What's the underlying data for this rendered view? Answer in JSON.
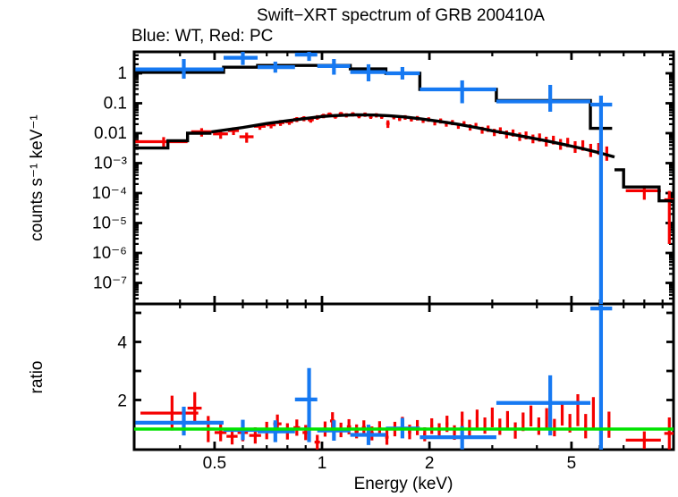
{
  "title": "Swift−XRT spectrum of GRB 200410A",
  "subtitle": "Blue: WT, Red: PC",
  "colors": {
    "wt_blue": "#1679f2",
    "pc_red": "#f50000",
    "model_black": "#000000",
    "ratio_green": "#00e300",
    "frame": "#000000",
    "background": "#ffffff"
  },
  "x_axis": {
    "label": "Energy (keV)",
    "scale": "log",
    "range_kev": [
      0.3,
      9.66
    ],
    "major_ticks": [
      {
        "v": 0.5,
        "label": "0.5"
      },
      {
        "v": 1,
        "label": "1"
      },
      {
        "v": 2,
        "label": "2"
      },
      {
        "v": 5,
        "label": "5"
      }
    ],
    "minor_ticks": [
      0.4,
      0.6,
      0.7,
      0.8,
      0.9,
      3,
      4,
      6,
      7,
      8,
      9
    ]
  },
  "chart_data": [
    {
      "panel": "spectrum",
      "type": "scatter",
      "ylabel": "counts s⁻¹ keV⁻¹",
      "yscale": "log",
      "yrange": [
        2e-08,
        5.2
      ],
      "yticks": [
        {
          "v": 1,
          "label": "1"
        },
        {
          "v": 0.1,
          "label": "0.1"
        },
        {
          "v": 0.01,
          "label": "0.01"
        },
        {
          "v": 0.001,
          "label": "10⁻³"
        },
        {
          "v": 0.0001,
          "label": "10⁻⁴"
        },
        {
          "v": 1e-05,
          "label": "10⁻⁵"
        },
        {
          "v": 1e-06,
          "label": "10⁻⁶"
        },
        {
          "v": 1e-07,
          "label": "10⁻⁷"
        }
      ],
      "wt_points": [
        [
          0.41,
          0.3,
          0.53,
          1.35,
          0.66,
          3.0
        ],
        [
          0.6,
          0.53,
          0.66,
          3.3,
          1.9,
          5.2
        ],
        [
          0.74,
          0.66,
          0.84,
          1.6,
          1.05,
          2.45
        ],
        [
          0.92,
          0.84,
          0.97,
          4.2,
          2.6,
          5.3
        ],
        [
          1.08,
          0.97,
          1.2,
          1.75,
          0.9,
          3.0
        ],
        [
          1.35,
          1.2,
          1.51,
          1.1,
          0.54,
          2.0
        ],
        [
          1.68,
          1.51,
          1.88,
          1.0,
          0.62,
          1.62
        ],
        [
          2.47,
          1.88,
          3.08,
          0.29,
          0.1,
          0.58
        ],
        [
          4.36,
          3.08,
          5.65,
          0.115,
          0.052,
          0.41
        ],
        [
          6.05,
          5.65,
          6.5,
          0.09,
          1e-08,
          0.18
        ]
      ],
      "wt_model_step": {
        "edges": [
          0.3,
          0.53,
          0.66,
          1.2,
          1.51,
          1.88,
          3.08,
          5.65,
          6.5
        ],
        "values": [
          1.08,
          1.6,
          1.83,
          1.4,
          1.0,
          0.29,
          0.123,
          0.0145
        ]
      },
      "pc_model_left_steps": {
        "edges": [
          0.3,
          0.37,
          0.42,
          0.49
        ],
        "values": [
          0.0032,
          0.0056,
          0.01
        ]
      },
      "pc_model_curve": [
        [
          0.49,
          0.011
        ],
        [
          0.6,
          0.0155
        ],
        [
          0.7,
          0.021
        ],
        [
          0.8,
          0.026
        ],
        [
          0.9,
          0.031
        ],
        [
          1.0,
          0.036
        ],
        [
          1.1,
          0.039
        ],
        [
          1.25,
          0.041
        ],
        [
          1.4,
          0.0405
        ],
        [
          1.55,
          0.038
        ],
        [
          1.7,
          0.035
        ],
        [
          1.9,
          0.03
        ],
        [
          2.1,
          0.0255
        ],
        [
          2.4,
          0.02
        ],
        [
          2.7,
          0.0155
        ],
        [
          3.0,
          0.012
        ],
        [
          3.4,
          0.0092
        ],
        [
          3.8,
          0.0072
        ],
        [
          4.3,
          0.0054
        ],
        [
          4.8,
          0.0041
        ],
        [
          5.4,
          0.003
        ],
        [
          6.0,
          0.0022
        ],
        [
          6.6,
          0.0016
        ]
      ],
      "pc_model_right_steps": {
        "edges": [
          6.6,
          7.0,
          8.8,
          9.66
        ],
        "values": [
          0.0006,
          0.00016,
          5.5e-05
        ]
      },
      "pc_points": [
        [
          0.36,
          0.06,
          0.0052,
          0.0022
        ],
        [
          0.46,
          0.03,
          0.0112,
          0.0035
        ],
        [
          0.52,
          0.025,
          0.0095,
          0.003
        ],
        [
          0.565,
          0.02,
          0.0122,
          0.0035
        ],
        [
          0.615,
          0.028,
          0.0076,
          0.0028
        ],
        [
          0.67,
          0.025,
          0.017,
          0.004
        ],
        [
          0.72,
          0.022,
          0.019,
          0.0045
        ],
        [
          0.765,
          0.02,
          0.0225,
          0.005
        ],
        [
          0.81,
          0.02,
          0.024,
          0.005
        ],
        [
          0.85,
          0.018,
          0.029,
          0.0055
        ],
        [
          0.89,
          0.018,
          0.031,
          0.006
        ],
        [
          0.93,
          0.018,
          0.028,
          0.0055
        ],
        [
          0.97,
          0.017,
          0.034,
          0.006
        ],
        [
          1.01,
          0.017,
          0.038,
          0.0065
        ],
        [
          1.05,
          0.017,
          0.042,
          0.007
        ],
        [
          1.09,
          0.016,
          0.037,
          0.0065
        ],
        [
          1.13,
          0.016,
          0.044,
          0.007
        ],
        [
          1.17,
          0.016,
          0.04,
          0.0065
        ],
        [
          1.22,
          0.016,
          0.043,
          0.007
        ],
        [
          1.27,
          0.016,
          0.038,
          0.0065
        ],
        [
          1.32,
          0.016,
          0.042,
          0.007
        ],
        [
          1.37,
          0.016,
          0.036,
          0.006
        ],
        [
          1.42,
          0.016,
          0.04,
          0.0065
        ],
        [
          1.47,
          0.016,
          0.036,
          0.006
        ],
        [
          1.53,
          0.017,
          0.021,
          0.006
        ],
        [
          1.59,
          0.017,
          0.035,
          0.006
        ],
        [
          1.65,
          0.017,
          0.031,
          0.0055
        ],
        [
          1.71,
          0.017,
          0.034,
          0.006
        ],
        [
          1.78,
          0.018,
          0.03,
          0.0055
        ],
        [
          1.85,
          0.018,
          0.032,
          0.0055
        ],
        [
          1.92,
          0.018,
          0.027,
          0.005
        ],
        [
          1.99,
          0.018,
          0.029,
          0.005
        ],
        [
          2.07,
          0.019,
          0.023,
          0.0048
        ],
        [
          2.15,
          0.019,
          0.026,
          0.005
        ],
        [
          2.23,
          0.02,
          0.021,
          0.0045
        ],
        [
          2.32,
          0.02,
          0.023,
          0.0045
        ],
        [
          2.41,
          0.021,
          0.018,
          0.004
        ],
        [
          2.5,
          0.021,
          0.021,
          0.0042
        ],
        [
          2.6,
          0.022,
          0.016,
          0.0038
        ],
        [
          2.7,
          0.022,
          0.018,
          0.004
        ],
        [
          2.81,
          0.023,
          0.013,
          0.0034
        ],
        [
          2.92,
          0.024,
          0.0145,
          0.0035
        ],
        [
          3.04,
          0.025,
          0.011,
          0.003
        ],
        [
          3.16,
          0.026,
          0.0125,
          0.0032
        ],
        [
          3.29,
          0.027,
          0.0095,
          0.0028
        ],
        [
          3.43,
          0.028,
          0.0105,
          0.0028
        ],
        [
          3.58,
          0.029,
          0.008,
          0.0025
        ],
        [
          3.73,
          0.03,
          0.0088,
          0.0026
        ],
        [
          3.9,
          0.032,
          0.0068,
          0.0022
        ],
        [
          4.07,
          0.033,
          0.0075,
          0.0023
        ],
        [
          4.25,
          0.035,
          0.0056,
          0.002
        ],
        [
          4.45,
          0.037,
          0.0062,
          0.002
        ],
        [
          4.66,
          0.038,
          0.0046,
          0.0018
        ],
        [
          4.88,
          0.04,
          0.0052,
          0.0018
        ],
        [
          5.12,
          0.042,
          0.0038,
          0.0016
        ],
        [
          5.38,
          0.044,
          0.0042,
          0.0016
        ],
        [
          5.66,
          0.046,
          0.003,
          0.0014
        ],
        [
          5.96,
          0.049,
          0.0033,
          0.0014
        ],
        [
          6.28,
          0.051,
          0.0024,
          0.0012
        ],
        [
          8.0,
          0.9,
          0.00012,
          6e-05
        ],
        [
          9.4,
          0.3,
          6e-05,
          5.8e-05
        ]
      ]
    },
    {
      "panel": "ratio",
      "type": "scatter",
      "ylabel": "ratio",
      "yscale": "linear",
      "yrange": [
        0.29,
        5.28
      ],
      "yticks": [
        {
          "v": 1,
          "label": ""
        },
        {
          "v": 2,
          "label": "2"
        },
        {
          "v": 3,
          "label": ""
        },
        {
          "v": 4,
          "label": "4"
        },
        {
          "v": 5,
          "label": ""
        }
      ],
      "reference_line": 1,
      "wt_points": [
        [
          0.41,
          0.3,
          0.53,
          1.22,
          0.78,
          1.77
        ],
        [
          0.6,
          0.53,
          0.66,
          0.97,
          0.62,
          1.32
        ],
        [
          0.74,
          0.66,
          0.84,
          0.92,
          0.55,
          1.3
        ],
        [
          0.92,
          0.84,
          0.97,
          2.02,
          0.55,
          3.1
        ],
        [
          1.08,
          0.97,
          1.2,
          0.95,
          0.6,
          1.3
        ],
        [
          1.35,
          1.2,
          1.51,
          0.8,
          0.45,
          1.15
        ],
        [
          1.68,
          1.51,
          1.88,
          1.02,
          0.68,
          1.38
        ],
        [
          2.47,
          1.88,
          3.08,
          0.72,
          0.3,
          1.1
        ],
        [
          4.36,
          3.08,
          5.65,
          1.9,
          0.78,
          2.85
        ],
        [
          6.05,
          5.65,
          6.5,
          5.15,
          0.29,
          5.28
        ]
      ],
      "pc_points": [
        [
          0.38,
          0.07,
          1.55,
          0.6
        ],
        [
          0.44,
          0.02,
          1.72,
          0.55
        ],
        [
          0.48,
          0.02,
          1.0,
          0.45
        ],
        [
          0.52,
          0.02,
          0.88,
          0.3
        ],
        [
          0.56,
          0.02,
          0.75,
          0.28
        ],
        [
          0.6,
          0.02,
          0.88,
          0.3
        ],
        [
          0.65,
          0.025,
          0.78,
          0.28
        ],
        [
          0.7,
          0.022,
          0.95,
          0.3
        ],
        [
          0.75,
          0.02,
          1.18,
          0.32
        ],
        [
          0.8,
          0.02,
          0.92,
          0.28
        ],
        [
          0.85,
          0.018,
          1.05,
          0.28
        ],
        [
          0.9,
          0.018,
          0.88,
          0.26
        ],
        [
          0.97,
          0.017,
          0.55,
          0.25
        ],
        [
          1.02,
          0.017,
          1.0,
          0.26
        ],
        [
          1.07,
          0.017,
          1.28,
          0.3
        ],
        [
          1.13,
          0.016,
          0.97,
          0.25
        ],
        [
          1.19,
          0.016,
          1.08,
          0.26
        ],
        [
          1.25,
          0.016,
          0.92,
          0.24
        ],
        [
          1.31,
          0.016,
          1.05,
          0.25
        ],
        [
          1.38,
          0.016,
          0.85,
          0.24
        ],
        [
          1.45,
          0.016,
          1.02,
          0.25
        ],
        [
          1.52,
          0.017,
          0.72,
          0.26
        ],
        [
          1.6,
          0.017,
          1.0,
          0.25
        ],
        [
          1.68,
          0.017,
          1.15,
          0.27
        ],
        [
          1.76,
          0.018,
          0.9,
          0.25
        ],
        [
          1.85,
          0.018,
          1.05,
          0.26
        ],
        [
          1.94,
          0.018,
          0.82,
          0.24
        ],
        [
          2.03,
          0.019,
          1.1,
          0.27
        ],
        [
          2.13,
          0.02,
          0.95,
          0.25
        ],
        [
          2.24,
          0.02,
          1.18,
          0.28
        ],
        [
          2.35,
          0.021,
          0.88,
          0.25
        ],
        [
          2.47,
          0.021,
          1.3,
          0.3
        ],
        [
          2.59,
          0.022,
          1.05,
          0.27
        ],
        [
          2.72,
          0.023,
          1.35,
          0.32
        ],
        [
          2.86,
          0.024,
          1.12,
          0.28
        ],
        [
          3.0,
          0.025,
          1.4,
          0.34
        ],
        [
          3.15,
          0.026,
          1.08,
          0.28
        ],
        [
          3.31,
          0.027,
          1.3,
          0.32
        ],
        [
          3.48,
          0.028,
          0.95,
          0.28
        ],
        [
          3.66,
          0.03,
          1.25,
          0.32
        ],
        [
          3.85,
          0.031,
          1.45,
          0.36
        ],
        [
          4.05,
          0.033,
          1.1,
          0.3
        ],
        [
          4.26,
          0.035,
          1.38,
          0.34
        ],
        [
          4.48,
          0.036,
          1.05,
          0.3
        ],
        [
          4.71,
          0.038,
          1.5,
          0.38
        ],
        [
          4.95,
          0.04,
          1.2,
          0.32
        ],
        [
          5.21,
          0.043,
          1.65,
          0.55
        ],
        [
          5.48,
          0.045,
          1.1,
          0.42
        ],
        [
          5.76,
          0.047,
          1.55,
          0.55
        ],
        [
          6.06,
          0.05,
          0.9,
          0.4
        ],
        [
          6.37,
          0.052,
          1.15,
          0.45
        ],
        [
          8.0,
          0.9,
          0.62,
          0.3
        ],
        [
          9.4,
          0.3,
          0.85,
          0.55
        ]
      ]
    }
  ]
}
